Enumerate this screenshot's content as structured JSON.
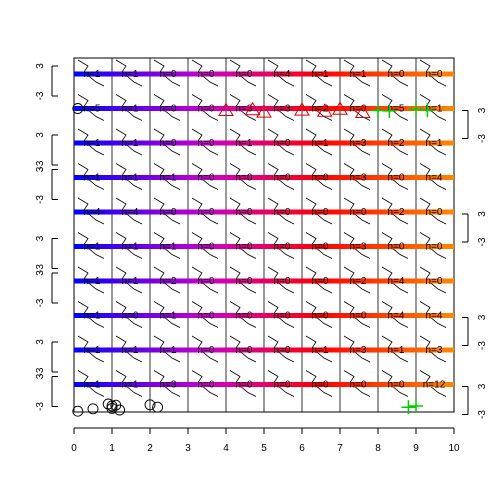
{
  "chart_data": {
    "type": "scatter",
    "title": "",
    "xlabel": "",
    "ylabel": "",
    "xlim": [
      0,
      10
    ],
    "x_ticks": [
      "0",
      "1",
      "2",
      "3",
      "4",
      "5",
      "6",
      "7",
      "8",
      "9",
      "10"
    ],
    "grid": true,
    "panel_count": 10,
    "columns": 10,
    "left_axis_ticks": [
      "3",
      "-3"
    ],
    "right_axis_ticks": [
      "3",
      "-3"
    ],
    "left_axis_panels": [
      0,
      2,
      3,
      5,
      6,
      8,
      9
    ],
    "right_axis_panels": [
      1,
      4,
      7,
      9
    ],
    "panels": [
      {
        "panel": 1,
        "labels": [
          "n=1",
          "n=1",
          "n=0",
          "n=0",
          "n=0",
          "n=4",
          "n=1",
          "n=1",
          "n=0",
          "n=0"
        ]
      },
      {
        "panel": 2,
        "labels": [
          "n=5",
          "n=1",
          "n=0",
          "n=0",
          "n=3",
          "n=3",
          "n=2",
          "n=0",
          "n=5",
          "n=1"
        ]
      },
      {
        "panel": 3,
        "labels": [
          "n=1",
          "n=1",
          "n=0",
          "n=0",
          "n=1",
          "n=0",
          "n=1",
          "n=3",
          "n=2",
          "n=1"
        ]
      },
      {
        "panel": 4,
        "labels": [
          "n=1",
          "n=1",
          "n=1",
          "n=0",
          "n=0",
          "n=0",
          "n=0",
          "n=3",
          "n=0",
          "n=4"
        ]
      },
      {
        "panel": 5,
        "labels": [
          "n=4",
          "n=4",
          "n=0",
          "n=0",
          "n=0",
          "n=0",
          "n=0",
          "n=0",
          "n=2",
          "n=0"
        ]
      },
      {
        "panel": 6,
        "labels": [
          "n=1",
          "n=1",
          "n=1",
          "n=0",
          "n=0",
          "n=0",
          "n=0",
          "n=3",
          "n=0",
          "n=0"
        ]
      },
      {
        "panel": 7,
        "labels": [
          "n=1",
          "n=1",
          "n=2",
          "n=0",
          "n=0",
          "n=0",
          "n=0",
          "n=2",
          "n=4",
          "n=0"
        ]
      },
      {
        "panel": 8,
        "labels": [
          "n=1",
          "n=0",
          "n=1",
          "n=0",
          "n=0",
          "n=0",
          "n=0",
          "n=0",
          "n=4",
          "n=4"
        ]
      },
      {
        "panel": 9,
        "labels": [
          "n=1",
          "n=1",
          "n=1",
          "n=0",
          "n=0",
          "n=0",
          "n=1",
          "n=3",
          "n=1",
          "n=3"
        ]
      },
      {
        "panel": 10,
        "labels": [
          "n=1",
          "n=1",
          "n=3",
          "n=0",
          "n=0",
          "n=0",
          "n=0",
          "n=0",
          "n=0",
          "n=12"
        ]
      }
    ],
    "gradient_colors": [
      "#0000ff",
      "#cc00cc",
      "#ff0000",
      "#ff8800"
    ],
    "symbol_colors": {
      "circle": "#000000",
      "triangle": "#dd0000",
      "plus": "#00cc00"
    },
    "points": {
      "circle": [
        [
          0.1,
          -3.2
        ],
        [
          0.1,
          2
        ],
        [
          1,
          -4.5
        ],
        [
          1.2,
          -3.5
        ],
        [
          1.1,
          -4.7
        ],
        [
          2.2,
          -4.2
        ],
        [
          2.0,
          -4.8
        ],
        [
          0.5,
          -3.8
        ],
        [
          1.0,
          -3.9
        ],
        [
          0.9,
          -5.0
        ]
      ],
      "triangle": [
        [
          4,
          2
        ],
        [
          4.7,
          2.2
        ],
        [
          5,
          1.6
        ],
        [
          6,
          2.1
        ],
        [
          7,
          2.3
        ],
        [
          6.6,
          1.8
        ],
        [
          7.6,
          1.5
        ]
      ],
      "plus": [
        [
          8,
          2
        ],
        [
          8.3,
          1.9
        ],
        [
          9,
          2.3
        ],
        [
          9.3,
          2.1
        ],
        [
          8.8,
          -4.2
        ],
        [
          9.0,
          -4.5
        ]
      ]
    }
  }
}
